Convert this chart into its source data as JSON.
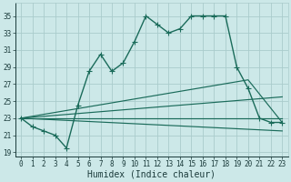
{
  "title": "",
  "xlabel": "Humidex (Indice chaleur)",
  "xlim": [
    -0.5,
    23.5
  ],
  "ylim": [
    18.5,
    36.5
  ],
  "xticks": [
    0,
    1,
    2,
    3,
    4,
    5,
    6,
    7,
    8,
    9,
    10,
    11,
    12,
    13,
    14,
    15,
    16,
    17,
    18,
    19,
    20,
    21,
    22,
    23
  ],
  "yticks": [
    19,
    21,
    23,
    25,
    27,
    29,
    31,
    33,
    35
  ],
  "bg_color": "#cce8e8",
  "grid_color": "#aacccc",
  "line_color": "#1a6b5a",
  "line_width": 1.0,
  "marker_size": 2.5,
  "main_x": [
    0,
    1,
    2,
    3,
    4,
    5,
    6,
    7,
    8,
    9,
    10,
    11,
    12,
    13,
    14,
    15,
    16,
    17,
    18,
    19,
    20,
    21,
    22,
    23
  ],
  "main_y": [
    23,
    22,
    21.5,
    21,
    19.5,
    24.5,
    28.5,
    30.5,
    28.5,
    29.5,
    32,
    35,
    34,
    33,
    33.5,
    35,
    35,
    35,
    35,
    29,
    26.5,
    23,
    22.5,
    22.5
  ],
  "trend1_x": [
    0,
    23
  ],
  "trend1_y": [
    23,
    21.5
  ],
  "trend2_x": [
    0,
    23
  ],
  "trend2_y": [
    23,
    23.0
  ],
  "trend3_x": [
    0,
    23
  ],
  "trend3_y": [
    23,
    25.5
  ],
  "trend4_x": [
    0,
    20,
    23
  ],
  "trend4_y": [
    23,
    27.5,
    22.5
  ],
  "font_color": "#1a3a3a",
  "tick_fontsize": 5.5,
  "label_fontsize": 7.0
}
